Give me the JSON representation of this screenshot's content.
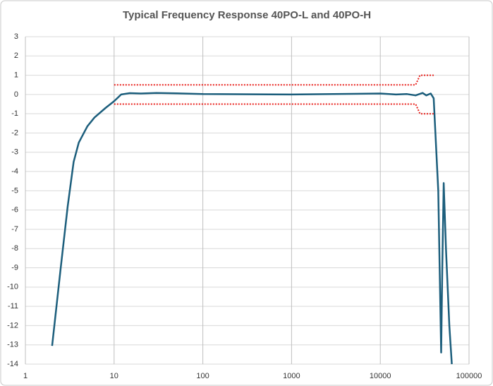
{
  "chart_data": {
    "type": "line",
    "title": "Typical Frequency Response 40PO-L and 40PO-H",
    "log_x": true,
    "grid": true,
    "xlim": [
      1,
      100000
    ],
    "xticks": [
      1,
      10,
      100,
      1000,
      10000,
      100000
    ],
    "ylim": [
      -14,
      3
    ],
    "yticks": [
      3,
      2,
      1,
      0,
      -1,
      -2,
      -3,
      -4,
      -5,
      -6,
      -7,
      -8,
      -9,
      -10,
      -11,
      -12,
      -13,
      -14
    ],
    "series": [
      {
        "color": "#1c5e7c",
        "dash": false,
        "x": [
          2,
          2.5,
          3,
          3.5,
          4,
          5,
          6,
          8,
          10,
          12,
          15,
          20,
          30,
          50,
          100,
          1000,
          10000,
          15000,
          20000,
          25000,
          30000,
          33000,
          37000,
          40000,
          45000,
          48500,
          50000,
          51800,
          55000,
          60000,
          64000
        ],
        "values": [
          -13.05,
          -9,
          -5.8,
          -3.5,
          -2.5,
          -1.65,
          -1.2,
          -0.7,
          -0.35,
          0,
          0.07,
          0.05,
          0.08,
          0.06,
          0.02,
          0,
          0.05,
          0,
          0.02,
          -0.05,
          0.08,
          -0.05,
          0.05,
          -0.2,
          -5,
          -13.4,
          -9,
          -4.6,
          -8,
          -12,
          -14
        ]
      },
      {
        "color": "#e8201c",
        "dash": true,
        "x": [
          10,
          25000,
          28000,
          40000
        ],
        "values": [
          0.5,
          0.5,
          1,
          1
        ]
      },
      {
        "color": "#e8201c",
        "dash": true,
        "x": [
          10,
          25000,
          28000,
          40000
        ],
        "values": [
          -0.5,
          -0.5,
          -1,
          -1
        ]
      }
    ]
  }
}
